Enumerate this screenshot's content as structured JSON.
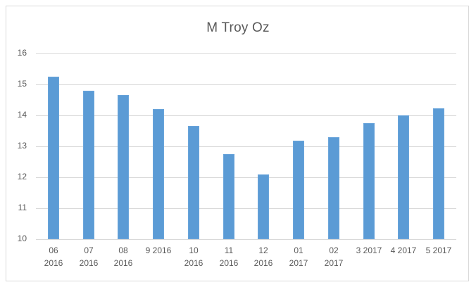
{
  "chart_data": {
    "type": "bar",
    "title": "M Troy Oz",
    "xlabel": "",
    "ylabel": "",
    "ylim": [
      10,
      16
    ],
    "yticks": [
      "16",
      "15",
      "14",
      "13",
      "12",
      "11",
      "10"
    ],
    "grid": true,
    "legend": null,
    "bar_color": "#5b9bd5",
    "categories": [
      "06 2016",
      "07 2016",
      "08 2016",
      "9 2016",
      "10 2016",
      "11 2016",
      "12 2016",
      "01 2017",
      "02 2017",
      "3 2017",
      "4 2017",
      "5 2017"
    ],
    "category_lines": [
      [
        "06",
        "2016"
      ],
      [
        "07",
        "2016"
      ],
      [
        "08",
        "2016"
      ],
      [
        "9 2016",
        ""
      ],
      [
        "10",
        "2016"
      ],
      [
        "11",
        "2016"
      ],
      [
        "12",
        "2016"
      ],
      [
        "01",
        "2017"
      ],
      [
        "02",
        "2017"
      ],
      [
        "3 2017",
        ""
      ],
      [
        "4 2017",
        ""
      ],
      [
        "5 2017",
        ""
      ]
    ],
    "values": [
      15.25,
      14.79,
      14.67,
      14.2,
      13.67,
      12.76,
      12.09,
      13.19,
      13.29,
      13.76,
      14.01,
      14.23
    ]
  }
}
